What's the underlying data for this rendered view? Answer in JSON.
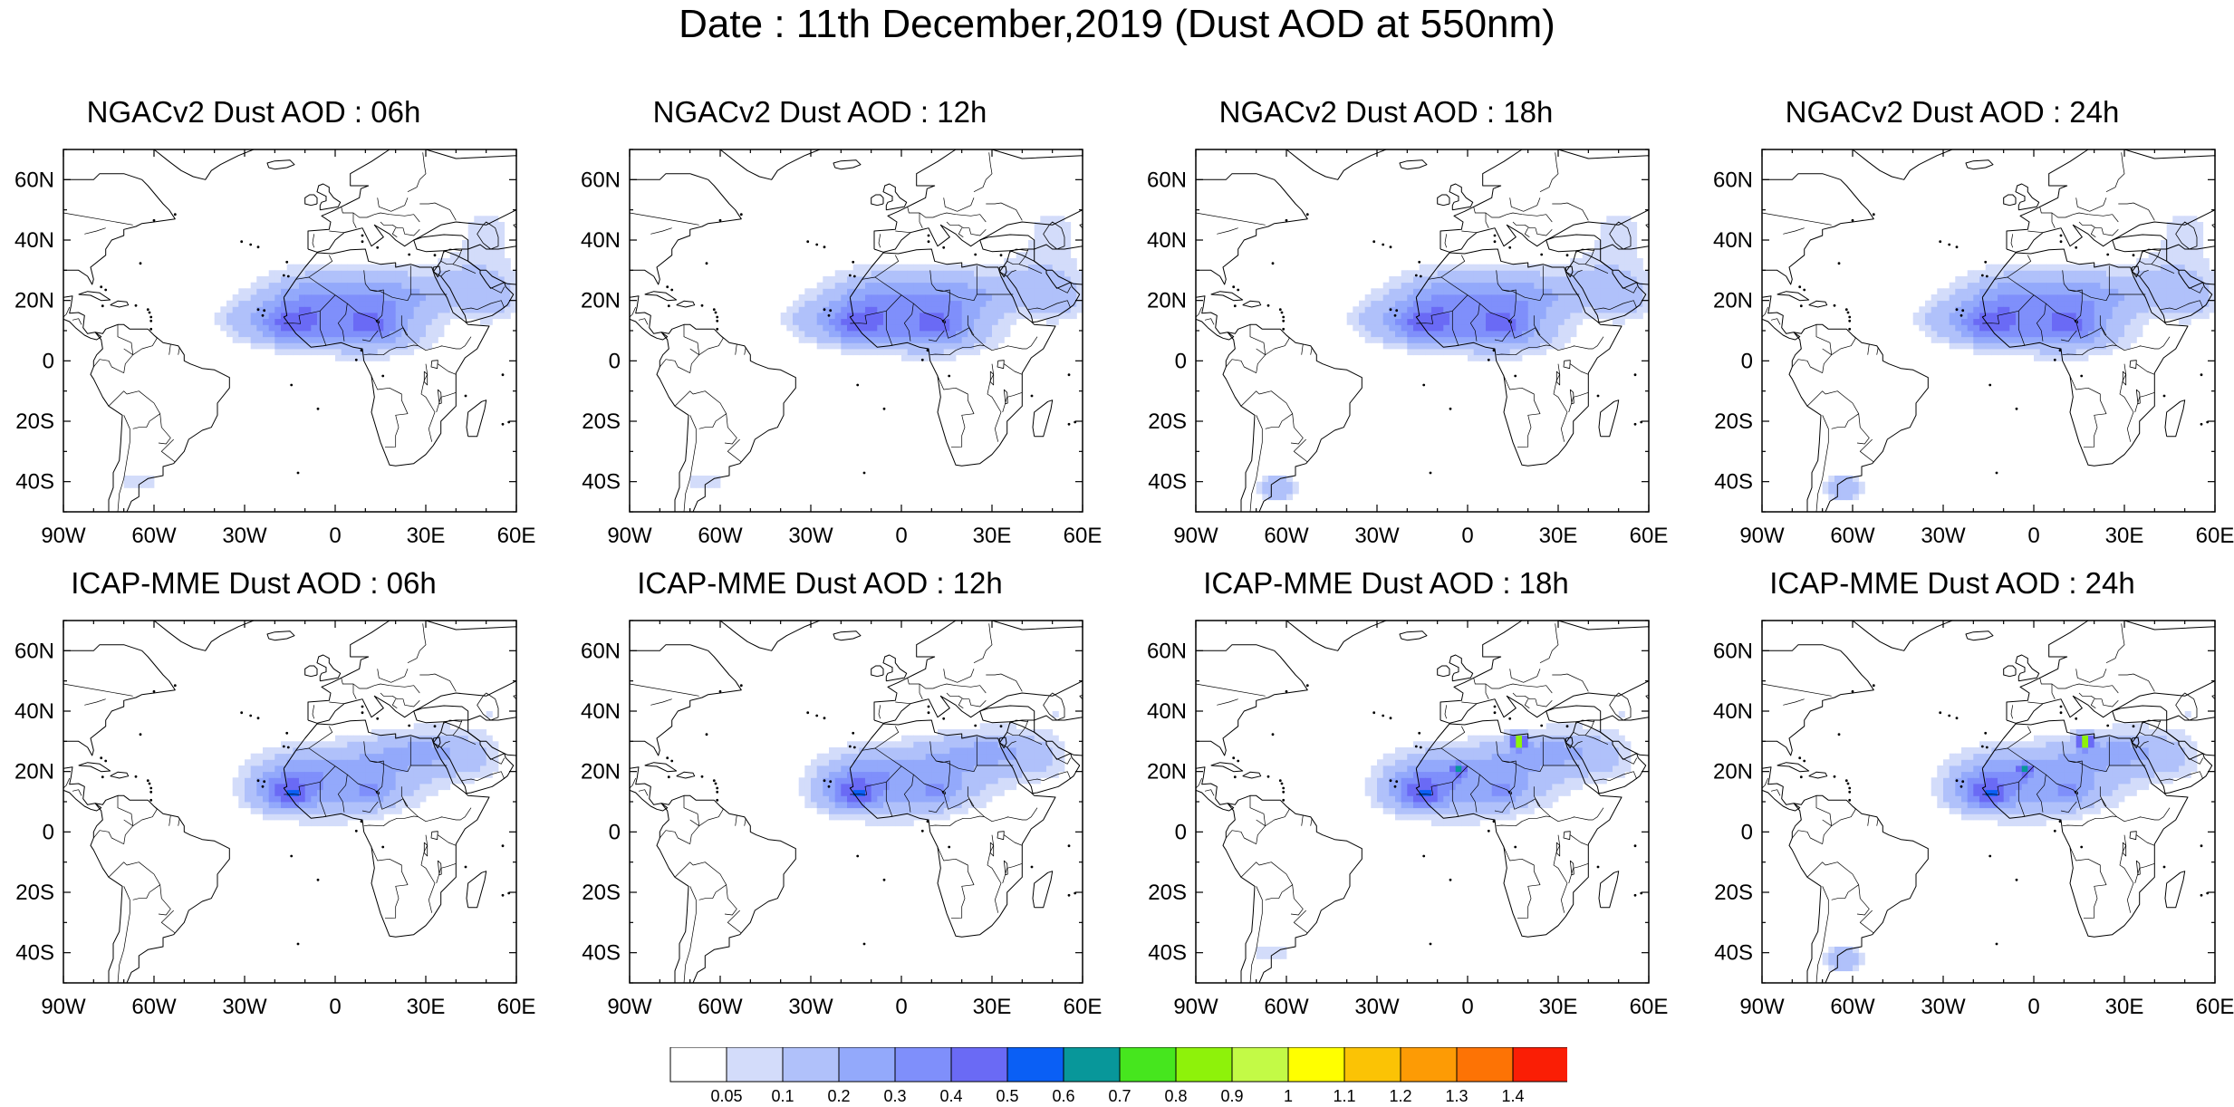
{
  "title": "Date : 11th December,2019 (Dust AOD at 550nm)",
  "axes": {
    "lon_ticks": [
      "90W",
      "60W",
      "30W",
      "0",
      "30E",
      "60E"
    ],
    "lat_ticks": [
      "60N",
      "40N",
      "20N",
      "0",
      "20S",
      "40S"
    ],
    "lon_range": [
      -90,
      60
    ],
    "lat_range": [
      -50,
      70
    ]
  },
  "panels": [
    {
      "title": "NGACv2 Dust AOD : 06h",
      "variant": "ngac",
      "hour": 6,
      "patagonia": 1
    },
    {
      "title": "NGACv2 Dust AOD : 12h",
      "variant": "ngac",
      "hour": 12,
      "patagonia": 1
    },
    {
      "title": "NGACv2 Dust AOD : 18h",
      "variant": "ngac",
      "hour": 18,
      "patagonia": 2
    },
    {
      "title": "NGACv2 Dust AOD : 24h",
      "variant": "ngac",
      "hour": 24,
      "patagonia": 2
    },
    {
      "title": "ICAP-MME Dust AOD : 06h",
      "variant": "icap",
      "hour": 6,
      "patagonia": 0
    },
    {
      "title": "ICAP-MME Dust AOD : 12h",
      "variant": "icap",
      "hour": 12,
      "patagonia": 0
    },
    {
      "title": "ICAP-MME Dust AOD : 18h",
      "variant": "icap",
      "hour": 18,
      "patagonia": 1
    },
    {
      "title": "ICAP-MME Dust AOD : 24h",
      "variant": "icap",
      "hour": 24,
      "patagonia": 2
    }
  ],
  "colorbar": {
    "levels": [
      "0.05",
      "0.1",
      "0.2",
      "0.3",
      "0.4",
      "0.5",
      "0.6",
      "0.7",
      "0.8",
      "0.9",
      "1",
      "1.1",
      "1.2",
      "1.3",
      "1.4"
    ],
    "colors": [
      "#ffffff",
      "#d3dcfa",
      "#b0c1fa",
      "#93a9fb",
      "#7f8ffb",
      "#6a6af5",
      "#0a5ff5",
      "#08979a",
      "#46e61e",
      "#8ef20a",
      "#c3fa46",
      "#ffff00",
      "#fbc305",
      "#fd9b05",
      "#fd7305",
      "#fa1e05"
    ]
  }
}
